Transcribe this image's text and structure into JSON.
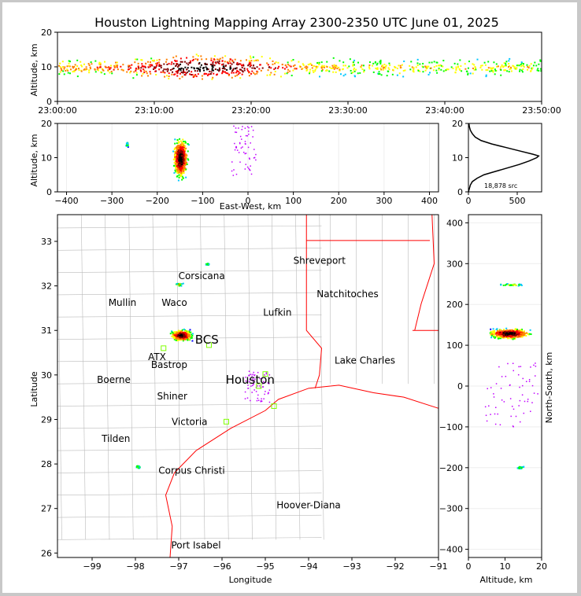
{
  "chart_data": [
    {
      "type": "scatter",
      "panel": "altitude-vs-time",
      "title": "Houston Lightning Mapping Array 2300-2350 UTC June 01, 2025",
      "ylabel": "Altitude, km",
      "ylim": [
        0,
        20
      ],
      "xlim": [
        "23:00:00",
        "23:50:00"
      ],
      "x_ticks": [
        "23:00:00",
        "23:10:00",
        "23:20:00",
        "23:30:00",
        "23:40:00",
        "23:50:00"
      ],
      "y_ticks": [
        "0",
        "10",
        "20"
      ],
      "density_by_time": [
        {
          "t": "23:00",
          "alt_min": 7,
          "alt_max": 13,
          "level": 0.5
        },
        {
          "t": "23:05",
          "alt_min": 7,
          "alt_max": 13,
          "level": 0.6
        },
        {
          "t": "23:10",
          "alt_min": 6,
          "alt_max": 14,
          "level": 0.8
        },
        {
          "t": "23:13",
          "alt_min": 5,
          "alt_max": 15,
          "level": 1.0
        },
        {
          "t": "23:16",
          "alt_min": 5,
          "alt_max": 15,
          "level": 1.0
        },
        {
          "t": "23:20",
          "alt_min": 6,
          "alt_max": 14,
          "level": 0.8
        },
        {
          "t": "23:25",
          "alt_min": 7,
          "alt_max": 13,
          "level": 0.55
        },
        {
          "t": "23:30",
          "alt_min": 7,
          "alt_max": 13,
          "level": 0.45
        },
        {
          "t": "23:35",
          "alt_min": 7,
          "alt_max": 13,
          "level": 0.45
        },
        {
          "t": "23:40",
          "alt_min": 7,
          "alt_max": 13,
          "level": 0.4
        },
        {
          "t": "23:45",
          "alt_min": 7,
          "alt_max": 13,
          "level": 0.45
        },
        {
          "t": "23:50",
          "alt_min": 7,
          "alt_max": 13,
          "level": 0.4
        }
      ]
    },
    {
      "type": "scatter",
      "panel": "altitude-vs-east-west",
      "xlabel": "East-West, km",
      "ylabel": "Altitude, km",
      "xlim": [
        -420,
        420
      ],
      "ylim": [
        0,
        20
      ],
      "x_ticks": [
        "−400",
        "−300",
        "−200",
        "−100",
        "0",
        "100",
        "200",
        "300",
        "400"
      ],
      "y_ticks": [
        "0",
        "10",
        "20"
      ],
      "clusters": [
        {
          "x": -150,
          "y": 10,
          "rx": 20,
          "ry": 7,
          "level": 1.0
        },
        {
          "x": -268,
          "y": 14,
          "rx": 4,
          "ry": 1,
          "level": 0.3
        }
      ],
      "scatter_x_range": [
        -40,
        20
      ]
    },
    {
      "type": "line",
      "panel": "altitude-histogram",
      "annotation": "18,878 src",
      "xlim": [
        0,
        750
      ],
      "ylim": [
        0,
        20
      ],
      "x_ticks": [
        "0",
        "500"
      ],
      "y_ticks": [
        "0",
        "10",
        "20"
      ],
      "points": [
        [
          0,
          0
        ],
        [
          10,
          1
        ],
        [
          20,
          2
        ],
        [
          40,
          3
        ],
        [
          90,
          4
        ],
        [
          160,
          5
        ],
        [
          280,
          6
        ],
        [
          400,
          7
        ],
        [
          520,
          8
        ],
        [
          620,
          9
        ],
        [
          700,
          10
        ],
        [
          720,
          10.5
        ],
        [
          660,
          11
        ],
        [
          520,
          12
        ],
        [
          380,
          13
        ],
        [
          240,
          14
        ],
        [
          130,
          15
        ],
        [
          70,
          16
        ],
        [
          40,
          17
        ],
        [
          20,
          18
        ],
        [
          10,
          19
        ],
        [
          5,
          20
        ]
      ]
    },
    {
      "type": "scatter",
      "panel": "plan-view-map",
      "xlabel": "Longitude",
      "ylabel": "Latitude",
      "xlim": [
        -99.8,
        -91
      ],
      "ylim": [
        25.9,
        33.6
      ],
      "x_ticks": [
        "−99",
        "−98",
        "−97",
        "−96",
        "−95",
        "−94",
        "−93",
        "−92",
        "−91"
      ],
      "y_ticks": [
        "26",
        "27",
        "28",
        "29",
        "30",
        "31",
        "32",
        "33"
      ],
      "clusters": [
        {
          "lon": -96.95,
          "lat": 30.9,
          "rx": 0.3,
          "ry": 0.15,
          "level": 1.0
        },
        {
          "lon": -97.0,
          "lat": 32.05,
          "rx": 0.1,
          "ry": 0.05,
          "level": 0.4
        },
        {
          "lon": -96.35,
          "lat": 32.5,
          "rx": 0.05,
          "ry": 0.03,
          "level": 0.3
        },
        {
          "lon": -97.95,
          "lat": 27.95,
          "rx": 0.08,
          "ry": 0.04,
          "level": 0.3
        }
      ],
      "cities": [
        {
          "name": "Shreveport",
          "lon": -93.75,
          "lat": 32.5,
          "color": "#000000"
        },
        {
          "name": "Corsicana",
          "lon": -96.47,
          "lat": 32.15,
          "color": "#000000"
        },
        {
          "name": "Natchitoches",
          "lon": -93.1,
          "lat": 31.75,
          "color": "#000000"
        },
        {
          "name": "Mullin",
          "lon": -98.3,
          "lat": 31.55,
          "color": "#ff8c1a"
        },
        {
          "name": "Waco",
          "lon": -97.1,
          "lat": 31.55,
          "color": "#000000"
        },
        {
          "name": "Lufkin",
          "lon": -94.72,
          "lat": 31.33,
          "color": "#000000"
        },
        {
          "name": "BCS",
          "lon": -96.35,
          "lat": 30.7,
          "color": "#800000"
        },
        {
          "name": "ATX",
          "lon": -97.5,
          "lat": 30.33,
          "color": "#ff8c1a"
        },
        {
          "name": "Bastrop",
          "lon": -97.22,
          "lat": 30.16,
          "color": "#000000"
        },
        {
          "name": "Lake Charles",
          "lon": -92.7,
          "lat": 30.25,
          "color": "#000000"
        },
        {
          "name": "Houston",
          "lon": -95.35,
          "lat": 29.8,
          "color": "#ffa500"
        },
        {
          "name": "Boerne",
          "lon": -98.5,
          "lat": 29.82,
          "color": "#000000"
        },
        {
          "name": "Shiner",
          "lon": -97.15,
          "lat": 29.45,
          "color": "#000000"
        },
        {
          "name": "Victoria",
          "lon": -96.75,
          "lat": 28.88,
          "color": "#000000"
        },
        {
          "name": "Tilden",
          "lon": -98.45,
          "lat": 28.5,
          "color": "#000000"
        },
        {
          "name": "Corpus Christi",
          "lon": -96.7,
          "lat": 27.78,
          "color": "#000000"
        },
        {
          "name": "Hoover-Diana",
          "lon": -94.0,
          "lat": 27.0,
          "color": "#0000ff"
        },
        {
          "name": "Port Isabel",
          "lon": -96.6,
          "lat": 26.1,
          "color": "#000000"
        }
      ],
      "stations": [
        {
          "lon": -97.35,
          "lat": 30.6
        },
        {
          "lon": -96.3,
          "lat": 30.67
        },
        {
          "lon": -95.0,
          "lat": 30.02
        },
        {
          "lon": -95.15,
          "lat": 29.75
        },
        {
          "lon": -94.8,
          "lat": 29.3
        },
        {
          "lon": -95.9,
          "lat": 28.95
        }
      ]
    },
    {
      "type": "scatter",
      "panel": "north-south-vs-altitude",
      "xlabel": "Altitude, km",
      "ylabel": "North-South, km",
      "xlim": [
        0,
        20
      ],
      "ylim": [
        -420,
        420
      ],
      "x_ticks": [
        "0",
        "10",
        "20"
      ],
      "y_ticks": [
        "−400",
        "−300",
        "−200",
        "−100",
        "0",
        "100",
        "200",
        "300",
        "400"
      ],
      "clusters": [
        {
          "x": 11,
          "y": 130,
          "rx": 7,
          "ry": 15,
          "level": 1.0
        },
        {
          "x": 12,
          "y": 250,
          "rx": 5,
          "ry": 3,
          "level": 0.4
        },
        {
          "x": 14,
          "y": -198,
          "rx": 1,
          "ry": 4,
          "level": 0.3
        }
      ]
    }
  ],
  "colors": {
    "core": "#ffffff",
    "ramp": [
      "#0000ff",
      "#00c8ff",
      "#00ff00",
      "#ffff00",
      "#ff8000",
      "#ff0000",
      "#800000",
      "#000000"
    ],
    "scatter": "#c000ff",
    "state_border": "#ff0000",
    "county_border": "#bbbbbb",
    "station": "#7fff00"
  }
}
